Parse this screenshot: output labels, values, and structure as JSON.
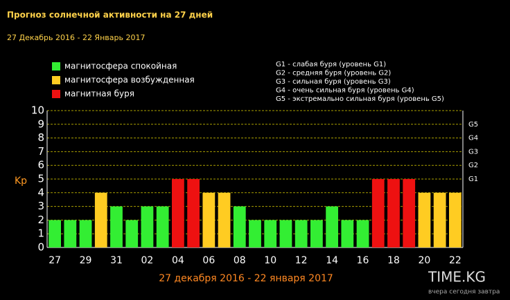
{
  "chart_data": {
    "type": "bar",
    "title": "Прогноз солнечной активности на 27 дней",
    "subtitle": "27 Декабрь 2016 - 22 Январь 2017",
    "x_label": "27 декабря 2016 - 22 января 2017",
    "y_label": "Kp",
    "categories": [
      "27",
      null,
      "29",
      null,
      "31",
      null,
      "02",
      null,
      "04",
      null,
      "06",
      null,
      "08",
      null,
      "10",
      null,
      "12",
      null,
      "14",
      null,
      "16",
      null,
      "18",
      null,
      "20",
      null,
      "22"
    ],
    "series": [
      {
        "name": "магнитосфера спокойная",
        "color": "#33ee33",
        "values": [
          2,
          2,
          2,
          null,
          3,
          2,
          3,
          3,
          null,
          null,
          null,
          null,
          3,
          2,
          2,
          2,
          2,
          2,
          3,
          2,
          2,
          null,
          null,
          null,
          null,
          null,
          null
        ]
      },
      {
        "name": "магнитосфера возбужденная",
        "color": "#ffcc22",
        "values": [
          null,
          null,
          null,
          4,
          null,
          null,
          null,
          null,
          null,
          null,
          4,
          4,
          null,
          null,
          null,
          null,
          null,
          null,
          null,
          null,
          null,
          null,
          null,
          null,
          4,
          4,
          4
        ]
      },
      {
        "name": "магнитная буря",
        "color": "#ee1111",
        "values": [
          null,
          null,
          null,
          null,
          null,
          null,
          null,
          null,
          5,
          5,
          null,
          null,
          null,
          null,
          null,
          null,
          null,
          null,
          null,
          null,
          null,
          5,
          5,
          5,
          null,
          null,
          null
        ]
      }
    ],
    "ylim": [
      0,
      10
    ],
    "yticks": [
      0,
      1,
      2,
      3,
      4,
      5,
      6,
      7,
      8,
      9,
      10
    ],
    "y2lim": [
      0,
      10
    ],
    "y2ticks": [
      {
        "value": 5,
        "label": "G1"
      },
      {
        "value": 6,
        "label": "G2"
      },
      {
        "value": 7,
        "label": "G3"
      },
      {
        "value": 8,
        "label": "G4"
      },
      {
        "value": 9,
        "label": "G5"
      }
    ],
    "notes": [
      "G1 - слабая буря (уровень G1)",
      "G2 - средняя буря (уровень G2)",
      "G3 - сильная буря (уровень G3)",
      "G4 - очень сильная буря (уровень G4)",
      "G5 - экстремально сильная буря (уровень G5)"
    ],
    "grid": true
  },
  "watermark": {
    "text": "TIME.KG",
    "tagline": "вчера сегодня завтра"
  }
}
